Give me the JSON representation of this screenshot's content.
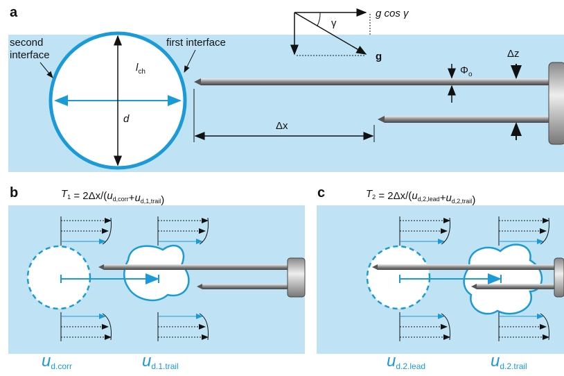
{
  "panel_a": {
    "label": "a",
    "second_interface": [
      "second",
      "interface"
    ],
    "first_interface": "first interface",
    "l_ch": {
      "symbol": "l",
      "sub": "ch"
    },
    "d": "d",
    "g_cos": "g cos γ",
    "gamma": "γ",
    "g": "g",
    "phi": {
      "symbol": "Φ",
      "sub": "o"
    },
    "dz": "Δz",
    "dx": "Δx"
  },
  "panel_b": {
    "label": "b",
    "formula": [
      {
        "t": "T",
        "s": "1"
      },
      {
        "t": " = 2Δx/("
      },
      {
        "t": "u",
        "s": "d,corr"
      },
      {
        "t": "+"
      },
      {
        "t": "u",
        "s": "d,1,trail"
      },
      {
        "t": ")"
      }
    ],
    "u_left": {
      "symbol": "u",
      "sub": "d.corr"
    },
    "u_right": {
      "symbol": "u",
      "sub": "d.1.trail"
    }
  },
  "panel_c": {
    "label": "c",
    "formula": [
      {
        "t": "T",
        "s": "2"
      },
      {
        "t": " = 2Δx/("
      },
      {
        "t": "u",
        "s": "d,2,lead"
      },
      {
        "t": "+"
      },
      {
        "t": "u",
        "s": "d,2,trail"
      },
      {
        "t": ")"
      }
    ],
    "u_left": {
      "symbol": "u",
      "sub": "d.2.lead"
    },
    "u_right": {
      "symbol": "u",
      "sub": "d.2.trail"
    }
  }
}
